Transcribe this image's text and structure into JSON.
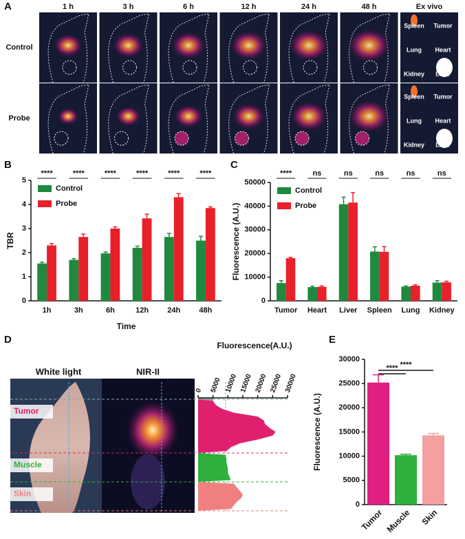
{
  "panel_a": {
    "label": "A",
    "times": [
      "1 h",
      "3 h",
      "6 h",
      "12 h",
      "24 h",
      "48 h",
      "Ex vivo"
    ],
    "rows": [
      "Control",
      "Probe"
    ],
    "organs": [
      "Spleen",
      "Tumor",
      "Lung",
      "Heart",
      "Kidney",
      "Liver"
    ]
  },
  "chart_data": [
    {
      "type": "grouped_bar",
      "panel": "B",
      "xlabel": "Time",
      "ylabel": "TBR",
      "categories": [
        "1h",
        "3h",
        "6h",
        "12h",
        "24h",
        "48h"
      ],
      "series": [
        {
          "name": "Control",
          "color": "#1f8a3f",
          "values": [
            1.55,
            1.7,
            1.97,
            2.2,
            2.65,
            2.5
          ],
          "errors": [
            0.05,
            0.05,
            0.06,
            0.07,
            0.15,
            0.18
          ]
        },
        {
          "name": "Probe",
          "color": "#e8202a",
          "values": [
            2.3,
            2.65,
            3.0,
            3.42,
            4.3,
            3.85
          ],
          "errors": [
            0.08,
            0.12,
            0.07,
            0.18,
            0.15,
            0.05
          ]
        }
      ],
      "significance": [
        "****",
        "****",
        "****",
        "****",
        "****",
        "****"
      ],
      "ylim": [
        0,
        5
      ],
      "yticks": [
        0,
        1,
        2,
        3,
        4,
        5
      ],
      "legend": "upper left"
    },
    {
      "type": "grouped_bar",
      "panel": "C",
      "ylabel": "Fluorescence (A.U.)",
      "categories": [
        "Tumor",
        "Heart",
        "Liver",
        "Spleen",
        "Lung",
        "Kidney"
      ],
      "series": [
        {
          "name": "Control",
          "color": "#1f8a3f",
          "values": [
            7500,
            5800,
            40800,
            20800,
            6000,
            7700
          ],
          "errors": [
            1000,
            400,
            3000,
            2000,
            300,
            800
          ]
        },
        {
          "name": "Probe",
          "color": "#e8202a",
          "values": [
            18000,
            5900,
            41500,
            20700,
            6400,
            7800
          ],
          "errors": [
            400,
            400,
            4200,
            2200,
            400,
            500
          ]
        }
      ],
      "significance": [
        "****",
        "ns",
        "ns",
        "ns",
        "ns",
        "ns"
      ],
      "ylim": [
        0,
        50000
      ],
      "yticks": [
        0,
        10000,
        20000,
        30000,
        40000,
        50000
      ],
      "legend": "upper left"
    },
    {
      "type": "profile",
      "panel": "D",
      "xlabel": "Fluorescence(A.U.)",
      "images": [
        "White light",
        "NIR-II"
      ],
      "xlim": [
        0,
        30000
      ],
      "xticks": [
        0,
        5000,
        10000,
        15000,
        20000,
        25000,
        30000
      ],
      "series": [
        {
          "name": "Tumor",
          "color": "#e0206f",
          "values": [
            5000,
            6000,
            8000,
            12000,
            20000,
            22000,
            22500,
            24000,
            26000,
            25000,
            20000,
            14000,
            11000,
            9500
          ]
        },
        {
          "name": "Muscle",
          "color": "#2db13c",
          "values": [
            9000,
            9500,
            9500,
            9800,
            10000,
            10000,
            10500,
            11000
          ]
        },
        {
          "name": "Skin",
          "color": "#f08080",
          "values": [
            12000,
            13000,
            14000,
            15000,
            14500,
            13000,
            12000,
            11000
          ]
        }
      ]
    },
    {
      "type": "bar",
      "panel": "E",
      "ylabel": "Fluorescence (A.U.)",
      "categories": [
        "Tumor",
        "Muscle",
        "Skin"
      ],
      "values": [
        25200,
        10200,
        14300
      ],
      "errors": [
        1600,
        200,
        400
      ],
      "colors": [
        "#e02080",
        "#2db13c",
        "#f4a0a0"
      ],
      "significance": [
        "****",
        "****"
      ],
      "ylim": [
        0,
        30000
      ],
      "yticks": [
        0,
        5000,
        10000,
        15000,
        20000,
        25000,
        30000
      ]
    }
  ]
}
